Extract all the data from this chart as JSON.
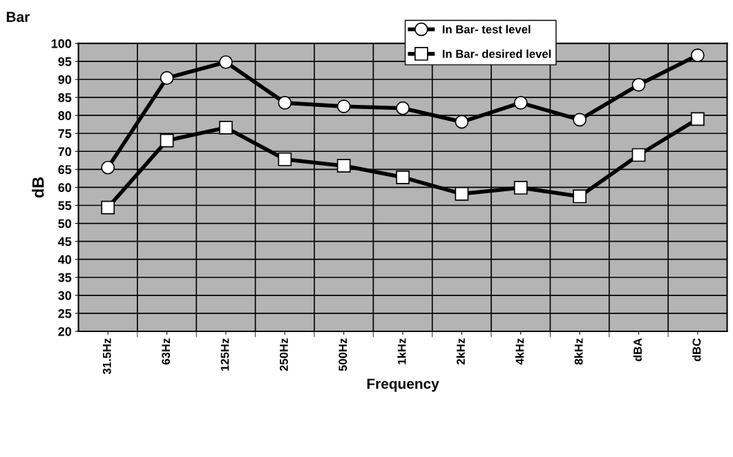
{
  "chart_data": {
    "type": "line",
    "title": "Bar",
    "xlabel": "Frequency",
    "ylabel": "dB",
    "categories": [
      "31.5Hz",
      "63Hz",
      "125Hz",
      "250Hz",
      "500Hz",
      "1kHz",
      "2kHz",
      "4kHz",
      "8kHz",
      "dBA",
      "dBC"
    ],
    "series": [
      {
        "name": "In Bar- test level",
        "color": "#000000",
        "marker": "circle",
        "values": [
          65.5,
          90.4,
          94.8,
          83.5,
          82.5,
          82,
          78.2,
          83.5,
          78.8,
          88.5,
          96.7
        ]
      },
      {
        "name": "In Bar- desired level",
        "color": "#000000",
        "marker": "square",
        "values": [
          54.4,
          73,
          76.6,
          67.8,
          66,
          62.8,
          58.2,
          59.9,
          57.5,
          69,
          79
        ]
      }
    ],
    "ylim": [
      20,
      100
    ],
    "yticks": [
      20,
      25,
      30,
      35,
      40,
      45,
      50,
      55,
      60,
      65,
      70,
      75,
      80,
      85,
      90,
      95,
      100
    ],
    "grid": true,
    "legend": "top"
  }
}
